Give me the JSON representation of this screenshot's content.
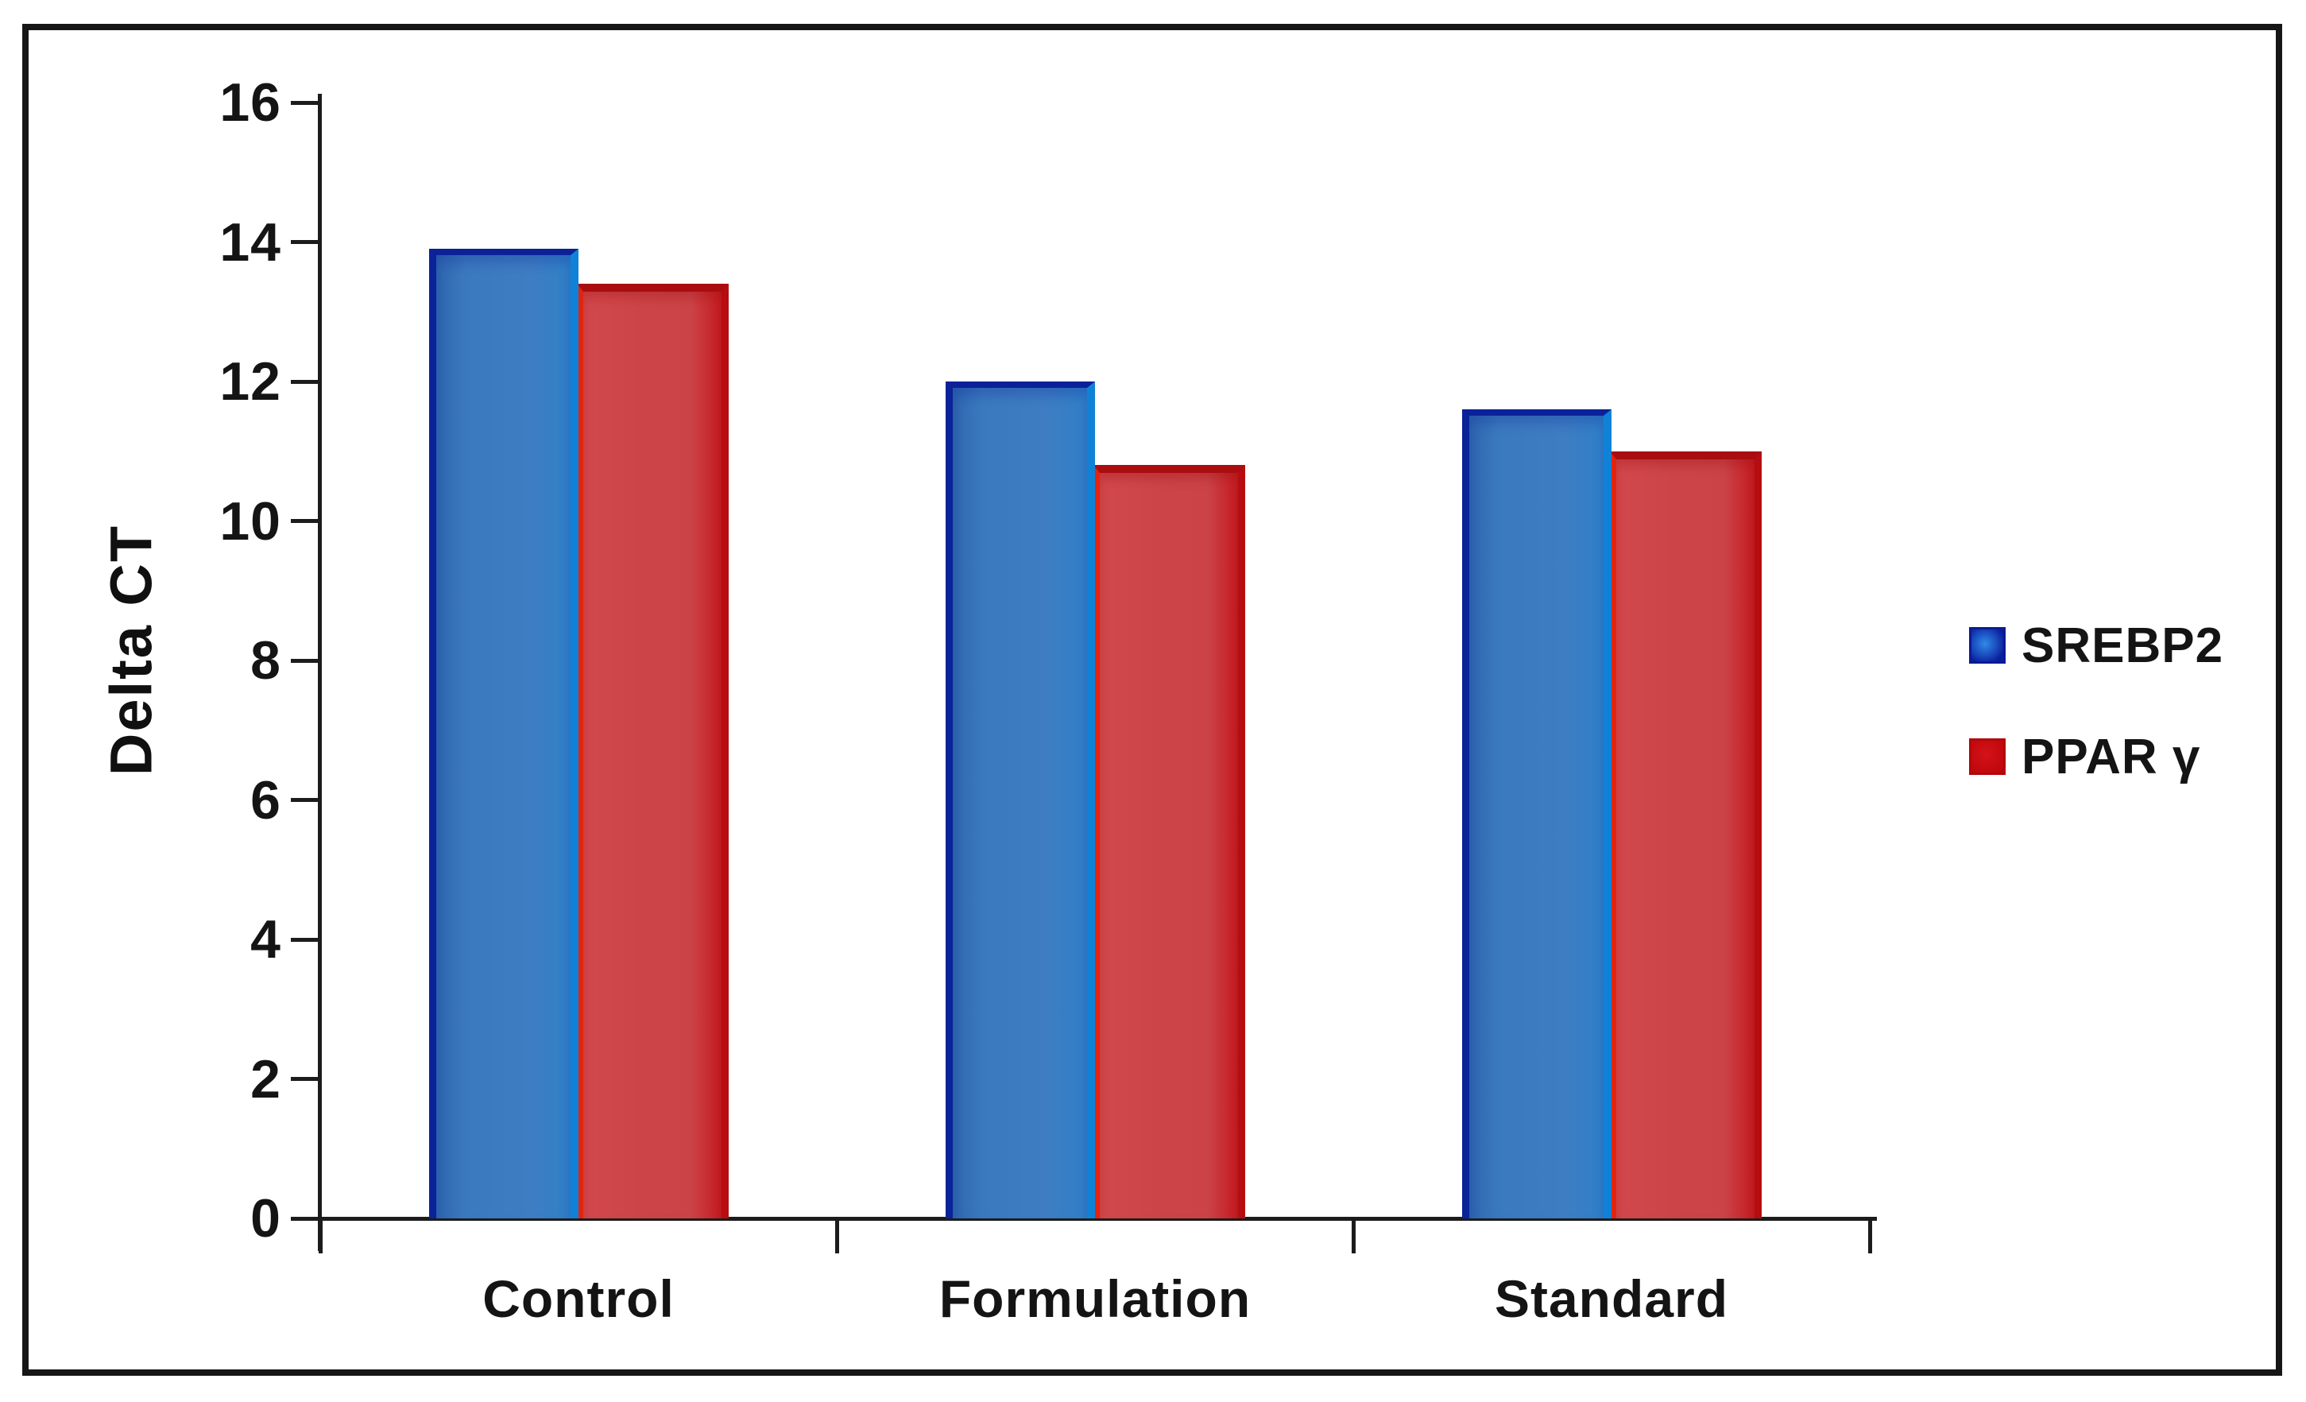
{
  "figure": {
    "border_color": "#161616",
    "background": "#ffffff"
  },
  "chart_data": {
    "type": "bar",
    "title": "",
    "xlabel": "",
    "ylabel": "Delta CT",
    "categories": [
      "Control",
      "Formulation",
      "Standard"
    ],
    "series": [
      {
        "name": "SREBP2",
        "values": [
          13.9,
          12.0,
          11.6
        ],
        "fill": "#3B79BE",
        "edge": "#0A2199",
        "highlight": "#0F82D8"
      },
      {
        "name": "PPAR γ",
        "values": [
          13.4,
          10.8,
          11.0
        ],
        "fill": "#CC4448",
        "edge": "#A90D10",
        "highlight": "#E2240E"
      }
    ],
    "ylim": [
      0,
      16
    ],
    "yticks": [
      "0",
      "2",
      "4",
      "6",
      "8",
      "10",
      "12",
      "14",
      "16"
    ],
    "grid": false,
    "legend_position": "right-middle"
  }
}
